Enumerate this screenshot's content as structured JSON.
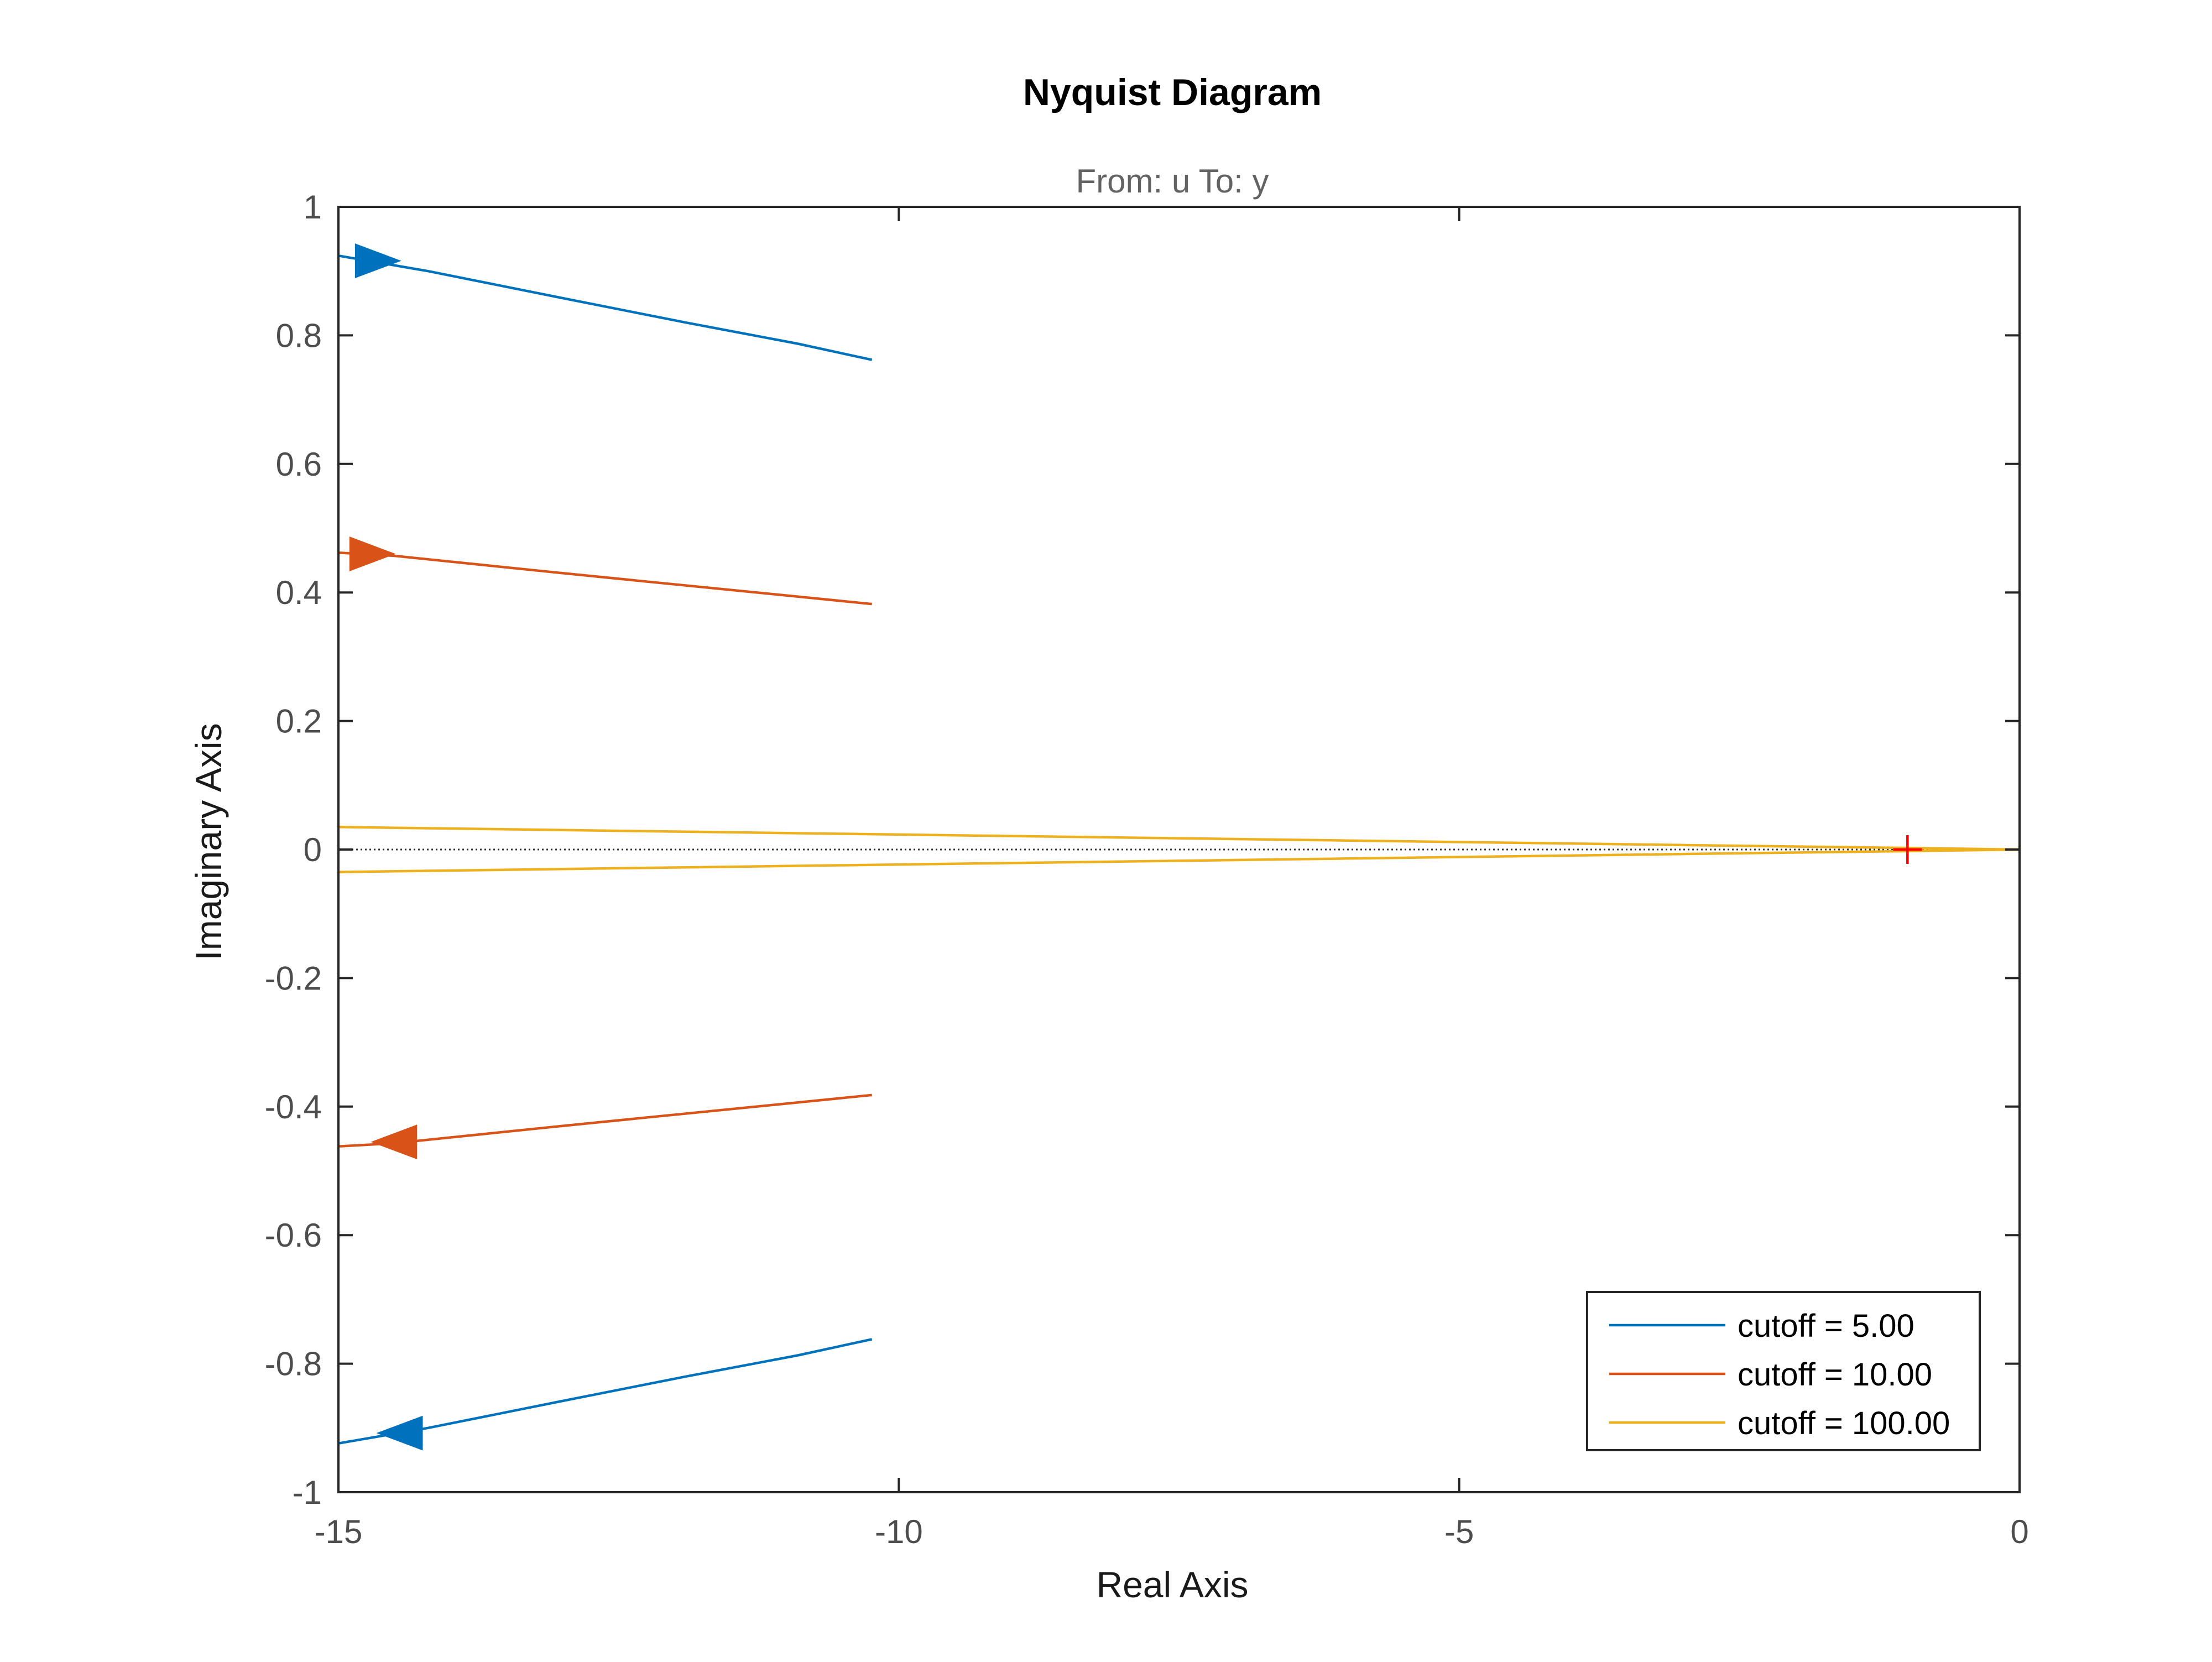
{
  "chart_data": {
    "type": "line",
    "title": "Nyquist Diagram",
    "subtitle": "From: u  To: y",
    "xlabel": "Real Axis",
    "ylabel": "Imaginary Axis",
    "xlim": [
      -15,
      0
    ],
    "ylim": [
      -1,
      1
    ],
    "xticks": [
      -15,
      -10,
      -5,
      0
    ],
    "xtick_labels": [
      "-15",
      "-10",
      "-5",
      "0"
    ],
    "yticks": [
      1,
      0.8,
      0.6,
      0.4,
      0.2,
      0,
      -0.2,
      -0.4,
      -0.6,
      -0.8,
      -1
    ],
    "ytick_labels": [
      "1",
      "0.8",
      "0.6",
      "0.4",
      "0.2",
      "0",
      "-0.2",
      "-0.4",
      "-0.6",
      "-0.8",
      "-1"
    ],
    "grid": false,
    "legend_position": "bottom-right",
    "critical_point": {
      "x": -1,
      "y": 0,
      "color": "#ff0000"
    },
    "zero_line": {
      "y": 0,
      "style": "dotted",
      "color": "#000000"
    },
    "series": [
      {
        "name": "cutoff = 5.00",
        "color": "#0072bd",
        "upper": [
          [
            -15,
            0.924
          ],
          [
            -14.2,
            0.9
          ],
          [
            -13,
            0.858
          ],
          [
            -11.9,
            0.82
          ],
          [
            -10.9,
            0.787
          ],
          [
            -10.24,
            0.762
          ]
        ],
        "lower": [
          [
            -15,
            -0.924
          ],
          [
            -14.2,
            -0.9
          ],
          [
            -13,
            -0.858
          ],
          [
            -11.9,
            -0.82
          ],
          [
            -10.9,
            -0.787
          ],
          [
            -10.24,
            -0.762
          ]
        ],
        "arrow_upper": {
          "x": -14.65,
          "y": 0.916,
          "direction": "right"
        },
        "arrow_lower": {
          "x": -14.45,
          "y": -0.908,
          "direction": "left"
        }
      },
      {
        "name": "cutoff = 10.00",
        "color": "#d95319",
        "upper": [
          [
            -15,
            0.462
          ],
          [
            -14.5,
            0.457
          ],
          [
            -13,
            0.43
          ],
          [
            -11.5,
            0.404
          ],
          [
            -10.24,
            0.382
          ]
        ],
        "lower": [
          [
            -15,
            -0.462
          ],
          [
            -14.5,
            -0.457
          ],
          [
            -13,
            -0.43
          ],
          [
            -11.5,
            -0.404
          ],
          [
            -10.24,
            -0.382
          ]
        ],
        "arrow_upper": {
          "x": -14.7,
          "y": 0.46,
          "direction": "right"
        },
        "arrow_lower": {
          "x": -14.5,
          "y": -0.455,
          "direction": "left"
        }
      },
      {
        "name": "cutoff = 100.00",
        "color": "#edb120",
        "upper": [
          [
            -15,
            0.035
          ],
          [
            -12,
            0.028
          ],
          [
            -9,
            0.021
          ],
          [
            -6,
            0.014
          ],
          [
            -3,
            0.007
          ],
          [
            -1,
            0.0025
          ],
          [
            0,
            0
          ]
        ],
        "lower": [
          [
            -15,
            -0.035
          ],
          [
            -12,
            -0.028
          ],
          [
            -9,
            -0.021
          ],
          [
            -6,
            -0.014
          ],
          [
            -3,
            -0.007
          ],
          [
            -1,
            -0.0025
          ],
          [
            0,
            0
          ]
        ]
      }
    ]
  }
}
